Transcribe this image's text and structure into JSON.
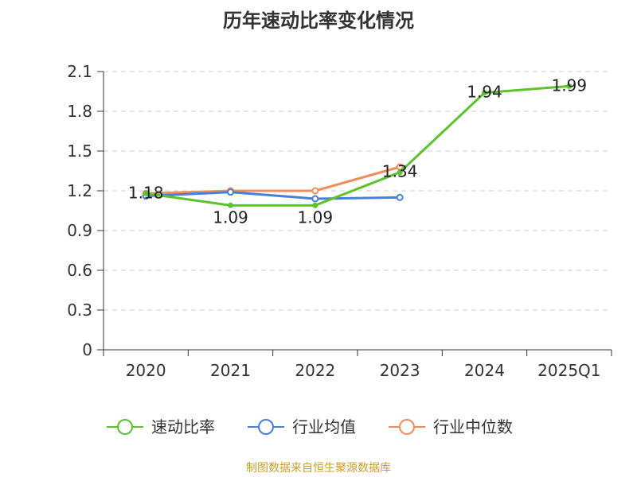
{
  "chart_data": {
    "type": "line",
    "title": "历年速动比率变化情况",
    "xlabel": "",
    "ylabel": "",
    "categories": [
      "2020",
      "2021",
      "2022",
      "2023",
      "2024",
      "2025Q1"
    ],
    "ylim": [
      0,
      2.1
    ],
    "yticks": [
      "0",
      "0.3",
      "0.6",
      "0.9",
      "1.2",
      "1.5",
      "1.8",
      "2.1"
    ],
    "grid": true,
    "legend_position": "bottom",
    "series": [
      {
        "name": "速动比率",
        "color": "#5cc22e",
        "values": [
          1.18,
          1.09,
          1.09,
          1.34,
          1.94,
          1.99
        ],
        "labels": [
          "1.18",
          "1.09",
          "1.09",
          "1.34",
          "1.94",
          "1.99"
        ]
      },
      {
        "name": "行业均值",
        "color": "#4a7fd9",
        "values": [
          1.16,
          1.19,
          1.14,
          1.15,
          null,
          null
        ]
      },
      {
        "name": "行业中位数",
        "color": "#f28e5c",
        "values": [
          1.18,
          1.2,
          1.2,
          1.38,
          null,
          null
        ]
      }
    ]
  },
  "source_note": "制图数据来自恒生聚源数据库"
}
